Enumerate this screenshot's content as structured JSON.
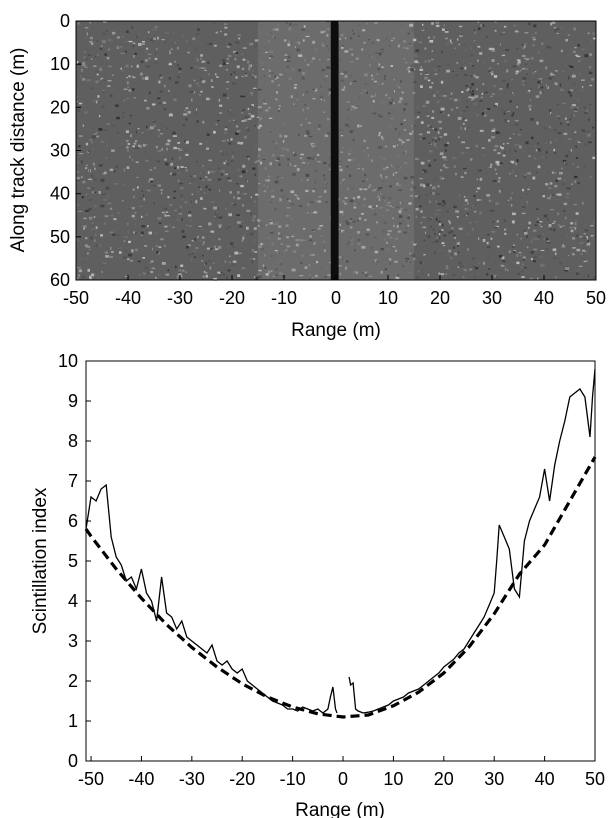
{
  "chart_data": [
    {
      "type": "heatmap",
      "xlabel": "Range (m)",
      "ylabel": "Along track distance (m)",
      "xlim": [
        -50,
        50
      ],
      "ylim": [
        0,
        60
      ],
      "y_inverted": true,
      "xticks": [
        -50,
        -40,
        -30,
        -20,
        -10,
        0,
        10,
        20,
        30,
        40,
        50
      ],
      "yticks": [
        0,
        10,
        20,
        30,
        40,
        50,
        60
      ],
      "colormap": "grayscale sonar intensity",
      "nadir_gap_x": [
        -1,
        0.5
      ]
    },
    {
      "type": "line",
      "xlabel": "Range (m)",
      "ylabel": "Scintillation index",
      "xlim": [
        -51,
        50
      ],
      "ylim": [
        0,
        10
      ],
      "xticks": [
        -50,
        -40,
        -30,
        -20,
        -10,
        0,
        10,
        20,
        30,
        40,
        50
      ],
      "yticks": [
        0,
        1,
        2,
        3,
        4,
        5,
        6,
        7,
        8,
        9,
        10
      ],
      "grid": false,
      "series": [
        {
          "style": "solid",
          "color": "#000000",
          "x": [
            -51,
            -50,
            -49,
            -48,
            -47,
            -46,
            -45,
            -44,
            -43,
            -42,
            -41,
            -40,
            -39,
            -38,
            -37,
            -36,
            -35,
            -34,
            -33,
            -32,
            -31,
            -30,
            -29,
            -28,
            -27,
            -26,
            -25,
            -24,
            -23,
            -22,
            -21,
            -20,
            -19,
            -18,
            -17,
            -16,
            -15,
            -14,
            -13,
            -12,
            -11,
            -10,
            -9,
            -8,
            -7,
            -6,
            -5,
            -4,
            -3,
            -2.5,
            -2,
            -1.5,
            -1.2,
            1.2,
            1.5,
            2,
            2.5,
            3,
            4,
            5,
            6,
            7,
            8,
            9,
            10,
            11,
            12,
            13,
            14,
            15,
            16,
            17,
            18,
            19,
            20,
            21,
            22,
            23,
            24,
            25,
            26,
            27,
            28,
            29,
            30,
            30.5,
            31,
            32,
            33,
            34,
            35,
            36,
            37,
            38,
            39,
            40,
            41,
            42,
            43,
            44,
            45,
            46,
            47,
            48,
            49,
            49.5,
            50
          ],
          "y": [
            5.8,
            6.6,
            6.5,
            6.8,
            6.9,
            5.6,
            5.1,
            4.9,
            4.5,
            4.6,
            4.3,
            4.8,
            4.2,
            4.0,
            3.5,
            4.6,
            3.7,
            3.6,
            3.3,
            3.5,
            3.1,
            3.0,
            2.9,
            2.8,
            2.7,
            2.9,
            2.5,
            2.4,
            2.5,
            2.3,
            2.2,
            2.3,
            2.0,
            1.9,
            1.8,
            1.7,
            1.6,
            1.5,
            1.45,
            1.4,
            1.3,
            1.3,
            1.25,
            1.35,
            1.3,
            1.25,
            1.3,
            1.2,
            1.3,
            1.6,
            1.85,
            1.3,
            1.2,
            2.1,
            1.9,
            1.95,
            1.3,
            1.25,
            1.2,
            1.22,
            1.25,
            1.3,
            1.35,
            1.4,
            1.5,
            1.55,
            1.6,
            1.7,
            1.75,
            1.8,
            1.9,
            2.0,
            2.1,
            2.2,
            2.35,
            2.45,
            2.55,
            2.7,
            2.8,
            3.0,
            3.2,
            3.4,
            3.6,
            3.9,
            4.2,
            5.0,
            5.9,
            5.6,
            5.3,
            4.3,
            4.1,
            5.5,
            6.0,
            6.3,
            6.6,
            7.3,
            6.5,
            7.4,
            8.0,
            8.5,
            9.1,
            9.2,
            9.3,
            9.1,
            8.1,
            9.1,
            9.8
          ]
        },
        {
          "style": "dashed",
          "color": "#000000",
          "x": [
            -51,
            -50,
            -45,
            -40,
            -35,
            -30,
            -25,
            -20,
            -15,
            -10,
            -5,
            0,
            5,
            10,
            15,
            20,
            25,
            30,
            35,
            40,
            45,
            50
          ],
          "y": [
            5.8,
            5.62,
            4.8,
            4.07,
            3.41,
            2.84,
            2.35,
            1.93,
            1.6,
            1.35,
            1.18,
            1.1,
            1.15,
            1.38,
            1.72,
            2.2,
            2.85,
            3.68,
            4.67,
            5.4,
            6.5,
            7.6
          ]
        }
      ]
    }
  ]
}
